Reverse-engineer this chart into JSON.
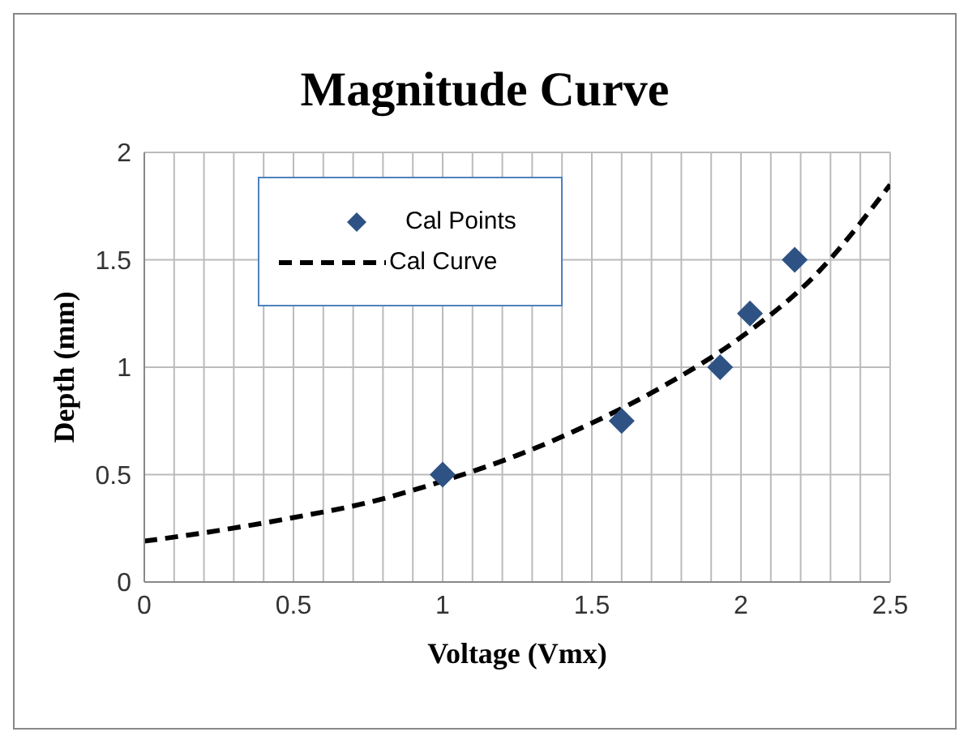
{
  "chart_data": {
    "type": "scatter",
    "title": "Magnitude Curve",
    "xlabel": "Voltage (Vmx)",
    "ylabel": "Depth (mm)",
    "series": [
      {
        "name": "Cal Points",
        "marker": "diamond",
        "color": "#2e5283",
        "x": [
          1.0,
          1.6,
          1.93,
          2.03,
          2.18
        ],
        "values": [
          0.5,
          0.75,
          1.0,
          1.25,
          1.5
        ]
      },
      {
        "name": "Cal Curve",
        "type": "line",
        "marker": "none",
        "line_style": "dashed",
        "color": "#000000",
        "x": [
          0,
          0.25,
          0.5,
          0.75,
          1.0,
          1.25,
          1.5,
          1.75,
          2.0,
          2.25,
          2.5
        ],
        "values": [
          0.19,
          0.24,
          0.3,
          0.37,
          0.47,
          0.59,
          0.74,
          0.92,
          1.14,
          1.43,
          1.85
        ]
      }
    ],
    "xlim": [
      0,
      2.5
    ],
    "xticks": [
      0,
      {
        "value": 0.1,
        "label": null
      },
      {
        "value": 0.2,
        "label": null
      },
      {
        "value": 0.3,
        "label": null
      },
      {
        "value": 0.4,
        "label": null
      },
      0.5,
      {
        "value": 0.6,
        "label": null
      },
      {
        "value": 0.7,
        "label": null
      },
      {
        "value": 0.8,
        "label": null
      },
      {
        "value": 0.9,
        "label": null
      },
      1,
      {
        "value": 1.1,
        "label": null
      },
      {
        "value": 1.2,
        "label": null
      },
      {
        "value": 1.3,
        "label": null
      },
      {
        "value": 1.4,
        "label": null
      },
      1.5,
      {
        "value": 1.6,
        "label": null
      },
      {
        "value": 1.7,
        "label": null
      },
      {
        "value": 1.8,
        "label": null
      },
      {
        "value": 1.9,
        "label": null
      },
      2,
      {
        "value": 2.1,
        "label": null
      },
      {
        "value": 2.2,
        "label": null
      },
      {
        "value": 2.3,
        "label": null
      },
      {
        "value": 2.4,
        "label": null
      },
      2.5
    ],
    "ylim": [
      0,
      2
    ],
    "yticks": [
      0,
      0.5,
      1,
      1.5,
      2
    ],
    "grid": true,
    "legend": "top left"
  }
}
